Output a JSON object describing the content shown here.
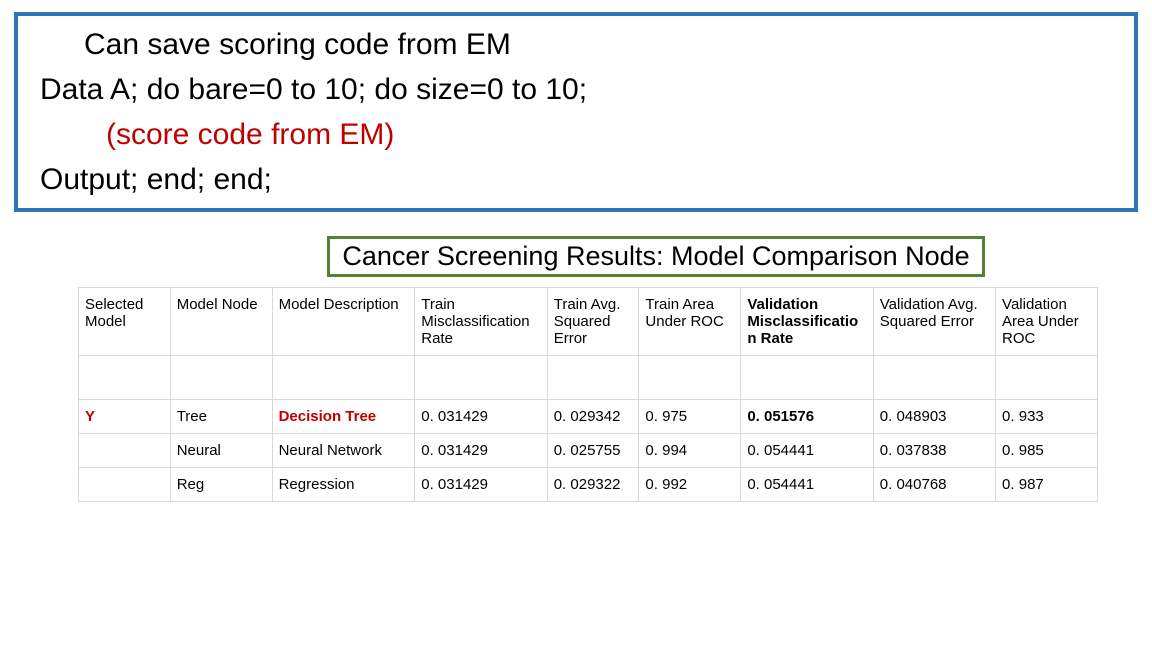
{
  "code": {
    "l1": "Can save scoring code from EM",
    "l2": "Data A; do bare=0 to 10; do size=0 to 10;",
    "l3_red": "(score code from EM)",
    "l4": "Output; end; end;"
  },
  "title": "Cancer Screening Results: Model Comparison Node",
  "table": {
    "headers": {
      "h0": "Selected Model",
      "h1": "Model Node",
      "h2": "Model Description",
      "h3": "Train Misclassification Rate",
      "h4": "Train Avg. Squared Error",
      "h5": "Train Area Under ROC",
      "h6": "Validation Misclassification Rate",
      "h7": "Validation Avg. Squared Error",
      "h8": "Validation Area Under ROC"
    },
    "rows": [
      {
        "sel": "Y",
        "node": "Tree",
        "desc": "Decision Tree",
        "tmr": "0. 031429",
        "tase": "0. 029342",
        "troc": "0. 975",
        "vmr": "0. 051576",
        "vase": "0. 048903",
        "vroc": "0. 933",
        "highlight": true
      },
      {
        "sel": "",
        "node": "Neural",
        "desc": "Neural Network",
        "tmr": "0. 031429",
        "tase": "0. 025755",
        "troc": "0. 994",
        "vmr": "0. 054441",
        "vase": "0. 037838",
        "vroc": "0. 985",
        "highlight": false
      },
      {
        "sel": "",
        "node": "Reg",
        "desc": "Regression",
        "tmr": "0. 031429",
        "tase": "0. 029322",
        "troc": "0. 992",
        "vmr": "0. 054441",
        "vase": "0. 040768",
        "vroc": "0. 987",
        "highlight": false
      }
    ]
  },
  "style": {
    "box_border_color": "#2e75b6",
    "title_border_color": "#548235",
    "red_text": "#c00000",
    "grid_color": "#d9d9d9",
    "bg": "#ffffff",
    "code_fontsize": 30,
    "title_fontsize": 27,
    "table_fontsize": 15
  }
}
